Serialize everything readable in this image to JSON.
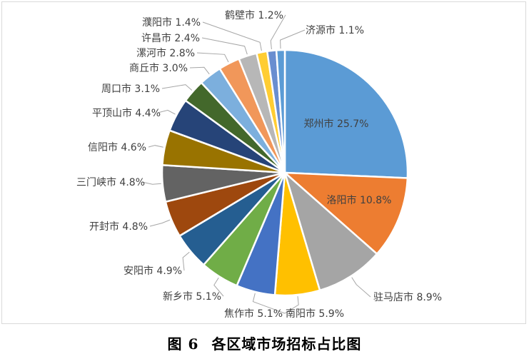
{
  "caption": {
    "figure_no": "图 6",
    "title": "各区域市场招标占比图"
  },
  "colors": {
    "palette": [
      "#5b9bd5",
      "#ed7d31",
      "#a5a5a5",
      "#ffc000",
      "#4472c4",
      "#70ad47",
      "#255e91",
      "#9e480e",
      "#636363",
      "#997300",
      "#264478",
      "#43682b",
      "#7cafdd",
      "#f1975a",
      "#b7b7b7",
      "#ffcd33",
      "#698ed0"
    ]
  },
  "chart_data": {
    "type": "pie",
    "title": "",
    "start_angle_deg": 0,
    "direction": "clockwise",
    "slices": [
      {
        "name": "郑州市",
        "value": 25.7,
        "label": "郑州市 25.7%"
      },
      {
        "name": "洛阳市",
        "value": 10.8,
        "label": "洛阳市 10.8%"
      },
      {
        "name": "驻马店市",
        "value": 8.9,
        "label": "驻马店市 8.9%"
      },
      {
        "name": "南阳市",
        "value": 5.9,
        "label": "南阳市 5.9%"
      },
      {
        "name": "焦作市",
        "value": 5.1,
        "label": "焦作市 5.1%"
      },
      {
        "name": "新乡市",
        "value": 5.1,
        "label": "新乡市 5.1%"
      },
      {
        "name": "安阳市",
        "value": 4.9,
        "label": "安阳市 4.9%"
      },
      {
        "name": "开封市",
        "value": 4.8,
        "label": "开封市 4.8%"
      },
      {
        "name": "三门峡市",
        "value": 4.8,
        "label": "三门峡市 4.8%"
      },
      {
        "name": "信阳市",
        "value": 4.6,
        "label": "信阳市 4.6%"
      },
      {
        "name": "平顶山市",
        "value": 4.4,
        "label": "平顶山市 4.4%"
      },
      {
        "name": "周口市",
        "value": 3.1,
        "label": "周口市 3.1%"
      },
      {
        "name": "商丘市",
        "value": 3.0,
        "label": "商丘市 3.0%"
      },
      {
        "name": "漯河市",
        "value": 2.8,
        "label": "漯河市 2.8%"
      },
      {
        "name": "许昌市",
        "value": 2.4,
        "label": "许昌市 2.4%"
      },
      {
        "name": "濮阳市",
        "value": 1.4,
        "label": "濮阳市 1.4%"
      },
      {
        "name": "鹤壁市",
        "value": 1.2,
        "label": "鹤壁市 1.2%"
      },
      {
        "name": "济源市",
        "value": 1.1,
        "label": "济源市 1.1%"
      }
    ],
    "legend": "none"
  }
}
